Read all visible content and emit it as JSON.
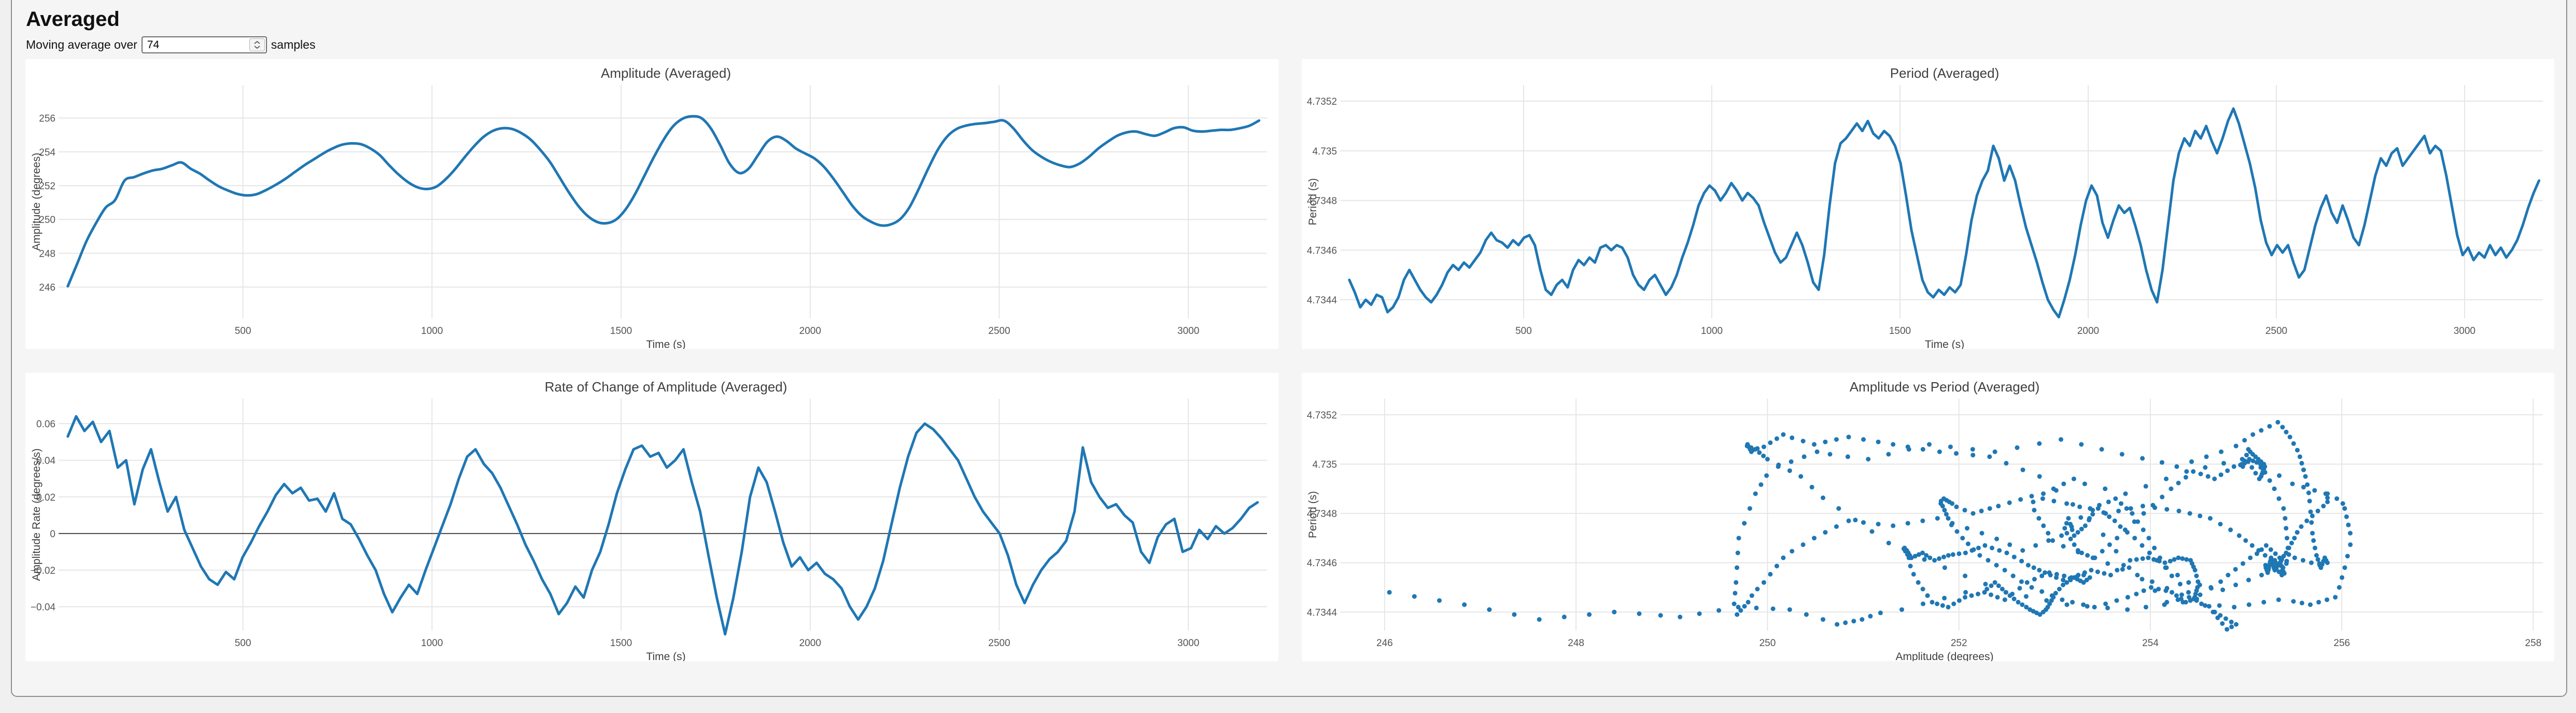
{
  "header": {
    "title": "Averaged",
    "control_label": "Moving average over",
    "input_value": "74",
    "control_suffix": "samples"
  },
  "colors": {
    "accent": "#1f77b4",
    "grid": "#e6e6e6",
    "zero_line": "#474747",
    "tick_text": "#545454",
    "label_text": "#3f3f3f",
    "panel_bg": "#ffffff",
    "container_bg": "#f5f5f5",
    "page_bg": "#f0f0f0"
  },
  "chart_data": [
    {
      "type": "line",
      "title": "Amplitude (Averaged)",
      "xlabel": "Time (s)",
      "ylabel": "Amplitude (degrees)",
      "xlim": [
        29,
        3208
      ],
      "ylim": [
        244.15,
        257.95
      ],
      "xticks": [
        500,
        1000,
        1500,
        2000,
        2500,
        3000
      ],
      "xtick_labels": [
        "500",
        "1000",
        "1500",
        "2000",
        "2500",
        "3000"
      ],
      "yticks": [
        246,
        248,
        250,
        252,
        254,
        256
      ],
      "ytick_labels": [
        "246",
        "248",
        "250",
        "252",
        "254",
        "256"
      ],
      "grid": true,
      "smooth": true,
      "series": {
        "t0": 37,
        "dt": 25,
        "values": [
          246.05,
          247.4,
          248.75,
          249.8,
          250.7,
          251.15,
          252.3,
          252.5,
          252.72,
          252.9,
          253.0,
          253.2,
          253.37,
          253.0,
          252.7,
          252.3,
          251.95,
          251.7,
          251.5,
          251.42,
          251.5,
          251.75,
          252.05,
          252.4,
          252.8,
          253.2,
          253.55,
          253.9,
          254.2,
          254.42,
          254.5,
          254.45,
          254.2,
          253.8,
          253.2,
          252.65,
          252.2,
          251.9,
          251.8,
          251.95,
          252.4,
          253.0,
          253.7,
          254.35,
          254.9,
          255.25,
          255.4,
          255.35,
          255.1,
          254.7,
          254.1,
          253.4,
          252.5,
          251.6,
          250.8,
          250.2,
          249.85,
          249.78,
          250.0,
          250.6,
          251.5,
          252.6,
          253.7,
          254.7,
          255.5,
          255.95,
          256.1,
          256.0,
          255.4,
          254.4,
          253.3,
          252.75,
          253.0,
          253.8,
          254.6,
          254.9,
          254.65,
          254.2,
          253.9,
          253.6,
          253.1,
          252.4,
          251.6,
          250.8,
          250.2,
          249.85,
          249.65,
          249.7,
          250.0,
          250.7,
          251.8,
          253.0,
          254.1,
          254.9,
          255.35,
          255.55,
          255.65,
          255.7,
          255.78,
          255.85,
          255.4,
          254.7,
          254.1,
          253.7,
          253.4,
          253.2,
          253.1,
          253.3,
          253.7,
          254.2,
          254.6,
          254.95,
          255.15,
          255.2,
          255.05,
          254.95,
          255.15,
          255.4,
          255.45,
          255.25,
          255.2,
          255.25,
          255.3,
          255.3,
          255.4,
          255.55,
          255.85
        ]
      }
    },
    {
      "type": "line",
      "title": "Period (Averaged)",
      "xlabel": "Time (s)",
      "ylabel": "Period (s)",
      "xlim": [
        29,
        3208
      ],
      "ylim": [
        4.734325,
        4.735265
      ],
      "xticks": [
        500,
        1000,
        1500,
        2000,
        2500,
        3000
      ],
      "xtick_labels": [
        "500",
        "1000",
        "1500",
        "2000",
        "2500",
        "3000"
      ],
      "yticks": [
        4.7344,
        4.7346,
        4.7348,
        4.735,
        4.7352
      ],
      "ytick_labels": [
        "4.7344",
        "4.7346",
        "4.7348",
        "4.735",
        "4.7352"
      ],
      "grid": true,
      "smooth": false,
      "series": {
        "t0": 37,
        "dt": 14.5,
        "values": [
          4.73448,
          4.73443,
          4.73437,
          4.7344,
          4.73438,
          4.73442,
          4.73441,
          4.73435,
          4.73437,
          4.73441,
          4.73448,
          4.73452,
          4.73448,
          4.73444,
          4.73441,
          4.73439,
          4.73442,
          4.73446,
          4.73451,
          4.73454,
          4.73452,
          4.73455,
          4.73453,
          4.73456,
          4.73459,
          4.73464,
          4.73467,
          4.73464,
          4.73463,
          4.73461,
          4.73464,
          4.73462,
          4.73465,
          4.73466,
          4.73462,
          4.73452,
          4.73444,
          4.73442,
          4.73446,
          4.73448,
          4.73445,
          4.73452,
          4.73456,
          4.73454,
          4.73457,
          4.73455,
          4.73461,
          4.73462,
          4.7346,
          4.73462,
          4.73461,
          4.73457,
          4.7345,
          4.73446,
          4.73444,
          4.73448,
          4.7345,
          4.73446,
          4.73442,
          4.73445,
          4.7345,
          4.73457,
          4.73463,
          4.7347,
          4.73478,
          4.73483,
          4.73486,
          4.73484,
          4.7348,
          4.73483,
          4.73487,
          4.73484,
          4.7348,
          4.73483,
          4.73481,
          4.73478,
          4.73471,
          4.73465,
          4.73459,
          4.73455,
          4.73457,
          4.73462,
          4.73467,
          4.73462,
          4.73455,
          4.73447,
          4.73444,
          4.73458,
          4.73478,
          4.73495,
          4.73503,
          4.73505,
          4.73508,
          4.73511,
          4.73508,
          4.73512,
          4.73507,
          4.73505,
          4.73508,
          4.73506,
          4.73502,
          4.73495,
          4.73482,
          4.73468,
          4.73458,
          4.73448,
          4.73443,
          4.73441,
          4.73444,
          4.73442,
          4.73445,
          4.73443,
          4.73446,
          4.73458,
          4.73472,
          4.73482,
          4.73488,
          4.73492,
          4.73502,
          4.73497,
          4.73488,
          4.73494,
          4.73488,
          4.73478,
          4.73469,
          4.73462,
          4.73455,
          4.73447,
          4.7344,
          4.73436,
          4.73433,
          4.7344,
          4.73448,
          4.73458,
          4.7347,
          4.7348,
          4.73486,
          4.73482,
          4.73471,
          4.73465,
          4.73472,
          4.73478,
          4.73475,
          4.73477,
          4.7347,
          4.73462,
          4.73452,
          4.73444,
          4.73439,
          4.73452,
          4.7347,
          4.73488,
          4.73499,
          4.73505,
          4.73502,
          4.73508,
          4.73505,
          4.7351,
          4.73504,
          4.73499,
          4.73505,
          4.73512,
          4.73517,
          4.73511,
          4.73503,
          4.73495,
          4.73485,
          4.73472,
          4.73463,
          4.73458,
          4.73462,
          4.73459,
          4.73462,
          4.73455,
          4.73449,
          4.73452,
          4.73461,
          4.7347,
          4.73477,
          4.73482,
          4.73475,
          4.73471,
          4.73478,
          4.73472,
          4.73465,
          4.73462,
          4.7347,
          4.7348,
          4.7349,
          4.73497,
          4.73494,
          4.73499,
          4.73501,
          4.73494,
          4.73497,
          4.735,
          4.73503,
          4.73506,
          4.73499,
          4.73502,
          4.735,
          4.7349,
          4.73478,
          4.73466,
          4.73458,
          4.73461,
          4.73456,
          4.73459,
          4.73457,
          4.73462,
          4.73458,
          4.73461,
          4.73457,
          4.7346,
          4.73464,
          4.7347,
          4.73477,
          4.73483,
          4.73488
        ]
      }
    },
    {
      "type": "line",
      "title": "Rate of Change of Amplitude (Averaged)",
      "xlabel": "Time (s)",
      "ylabel": "Amplitude Rate (degrees/s)",
      "xlim": [
        29,
        3208
      ],
      "ylim": [
        -0.053,
        0.0736
      ],
      "xticks": [
        500,
        1000,
        1500,
        2000,
        2500,
        3000
      ],
      "xtick_labels": [
        "500",
        "1000",
        "1500",
        "2000",
        "2500",
        "3000"
      ],
      "yticks": [
        -0.04,
        -0.02,
        0,
        0.02,
        0.04,
        0.06
      ],
      "ytick_labels": [
        "−0.04",
        "−0.02",
        "0",
        "0.02",
        "0.04",
        "0.06"
      ],
      "zero_line": true,
      "grid": true,
      "smooth": false,
      "series": {
        "t0": 37,
        "dt": 22,
        "values": [
          0.053,
          0.064,
          0.056,
          0.061,
          0.05,
          0.056,
          0.036,
          0.04,
          0.016,
          0.035,
          0.046,
          0.028,
          0.012,
          0.02,
          0.002,
          -0.008,
          -0.018,
          -0.025,
          -0.028,
          -0.021,
          -0.025,
          -0.013,
          -0.005,
          0.004,
          0.012,
          0.021,
          0.027,
          0.022,
          0.025,
          0.018,
          0.019,
          0.012,
          0.022,
          0.008,
          0.005,
          -0.003,
          -0.012,
          -0.02,
          -0.033,
          -0.043,
          -0.035,
          -0.028,
          -0.033,
          -0.02,
          -0.008,
          0.004,
          0.016,
          0.03,
          0.042,
          0.046,
          0.038,
          0.033,
          0.025,
          0.015,
          0.005,
          -0.006,
          -0.015,
          -0.025,
          -0.033,
          -0.044,
          -0.038,
          -0.029,
          -0.035,
          -0.02,
          -0.01,
          0.005,
          0.022,
          0.035,
          0.046,
          0.048,
          0.042,
          0.044,
          0.036,
          0.04,
          0.046,
          0.028,
          0.012,
          -0.012,
          -0.035,
          -0.055,
          -0.035,
          -0.01,
          0.02,
          0.036,
          0.028,
          0.012,
          -0.005,
          -0.018,
          -0.013,
          -0.02,
          -0.016,
          -0.022,
          -0.025,
          -0.03,
          -0.04,
          -0.047,
          -0.04,
          -0.03,
          -0.015,
          0.005,
          0.025,
          0.042,
          0.055,
          0.06,
          0.057,
          0.052,
          0.046,
          0.04,
          0.03,
          0.02,
          0.012,
          0.006,
          0.0,
          -0.012,
          -0.028,
          -0.038,
          -0.028,
          -0.02,
          -0.014,
          -0.01,
          -0.004,
          0.012,
          0.047,
          0.028,
          0.02,
          0.014,
          0.016,
          0.01,
          0.006,
          -0.01,
          -0.016,
          -0.002,
          0.005,
          0.008,
          -0.01,
          -0.008,
          0.002,
          -0.003,
          0.004,
          0.0,
          0.003,
          0.008,
          0.014,
          0.017
        ]
      }
    },
    {
      "type": "scatter",
      "title": "Amplitude vs Period (Averaged)",
      "xlabel": "Amplitude (degrees)",
      "ylabel": "Period (s)",
      "xlim": [
        245.6,
        258.1
      ],
      "ylim": [
        4.734325,
        4.735265
      ],
      "xticks": [
        246,
        248,
        250,
        252,
        254,
        256,
        258
      ],
      "xtick_labels": [
        "246",
        "248",
        "250",
        "252",
        "254",
        "256",
        "258"
      ],
      "yticks": [
        4.7344,
        4.7346,
        4.7348,
        4.735,
        4.7352
      ],
      "ytick_labels": [
        "4.7344",
        "4.7346",
        "4.7348",
        "4.735",
        "4.7352"
      ],
      "grid": true,
      "points": "pairs of (amplitude, period) sampled over time from chart 0 (x) and chart 1 (y)",
      "x_source_chart": 0,
      "y_source_chart": 1,
      "densify": 2,
      "dot_radius": 4.5
    }
  ]
}
